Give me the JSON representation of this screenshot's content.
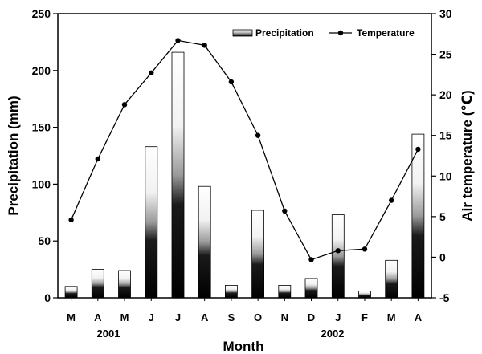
{
  "chart_data": {
    "type": "bar",
    "categories": [
      "M",
      "A",
      "M",
      "J",
      "J",
      "A",
      "S",
      "O",
      "N",
      "D",
      "J",
      "F",
      "M",
      "A"
    ],
    "years": [
      {
        "label": "2001"
      },
      {
        "label": "2002"
      }
    ],
    "series": [
      {
        "name": "Precipitation",
        "kind": "bar",
        "axis": "left",
        "values": [
          10,
          25,
          24,
          133,
          216,
          98,
          11,
          77,
          11,
          17,
          73,
          6,
          33,
          144
        ]
      },
      {
        "name": "Temperature",
        "kind": "line",
        "axis": "right",
        "values": [
          4.6,
          12.1,
          18.8,
          22.7,
          26.7,
          26.1,
          21.6,
          15.0,
          5.7,
          -0.3,
          0.8,
          1.0,
          7.0,
          13.3
        ]
      }
    ],
    "xlabel": "Month",
    "ylabel": "Precipitation (mm)",
    "y2label": "Air temperature (℃)",
    "ylim": [
      0,
      250
    ],
    "y2lim": [
      -5,
      30
    ],
    "yticks": [
      0,
      50,
      100,
      150,
      200,
      250
    ],
    "y2ticks": [
      -5,
      0,
      5,
      10,
      15,
      20,
      25,
      30
    ],
    "legend_position": "top-right",
    "grid": false
  }
}
